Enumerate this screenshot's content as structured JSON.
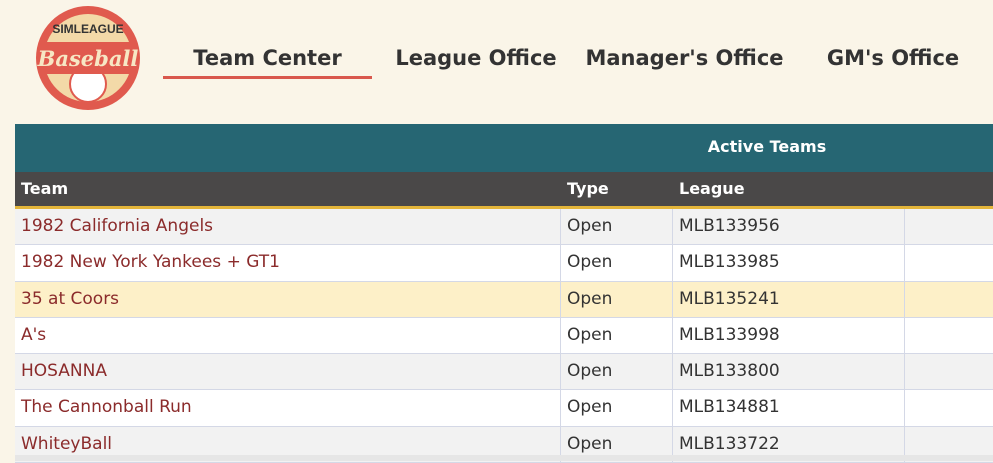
{
  "logo": {
    "top": "SIMLEAGUE",
    "script": "Baseball"
  },
  "nav": [
    "Team Center",
    "League Office",
    "Manager's Office",
    "GM's Office"
  ],
  "table": {
    "title": "Active Teams",
    "columns": [
      "Team",
      "Type",
      "League"
    ],
    "rows": [
      [
        "1982 California Angels",
        "Open",
        "MLB133956"
      ],
      [
        "1982 New York Yankees + GT1",
        "Open",
        "MLB133985"
      ],
      [
        "35 at Coors",
        "Open",
        "MLB135241"
      ],
      [
        "A's",
        "Open",
        "MLB133998"
      ],
      [
        "HOSANNA",
        "Open",
        "MLB133800"
      ],
      [
        "The Cannonball Run",
        "Open",
        "MLB134881"
      ],
      [
        "WhiteyBall",
        "Open",
        "MLB133722"
      ]
    ]
  }
}
